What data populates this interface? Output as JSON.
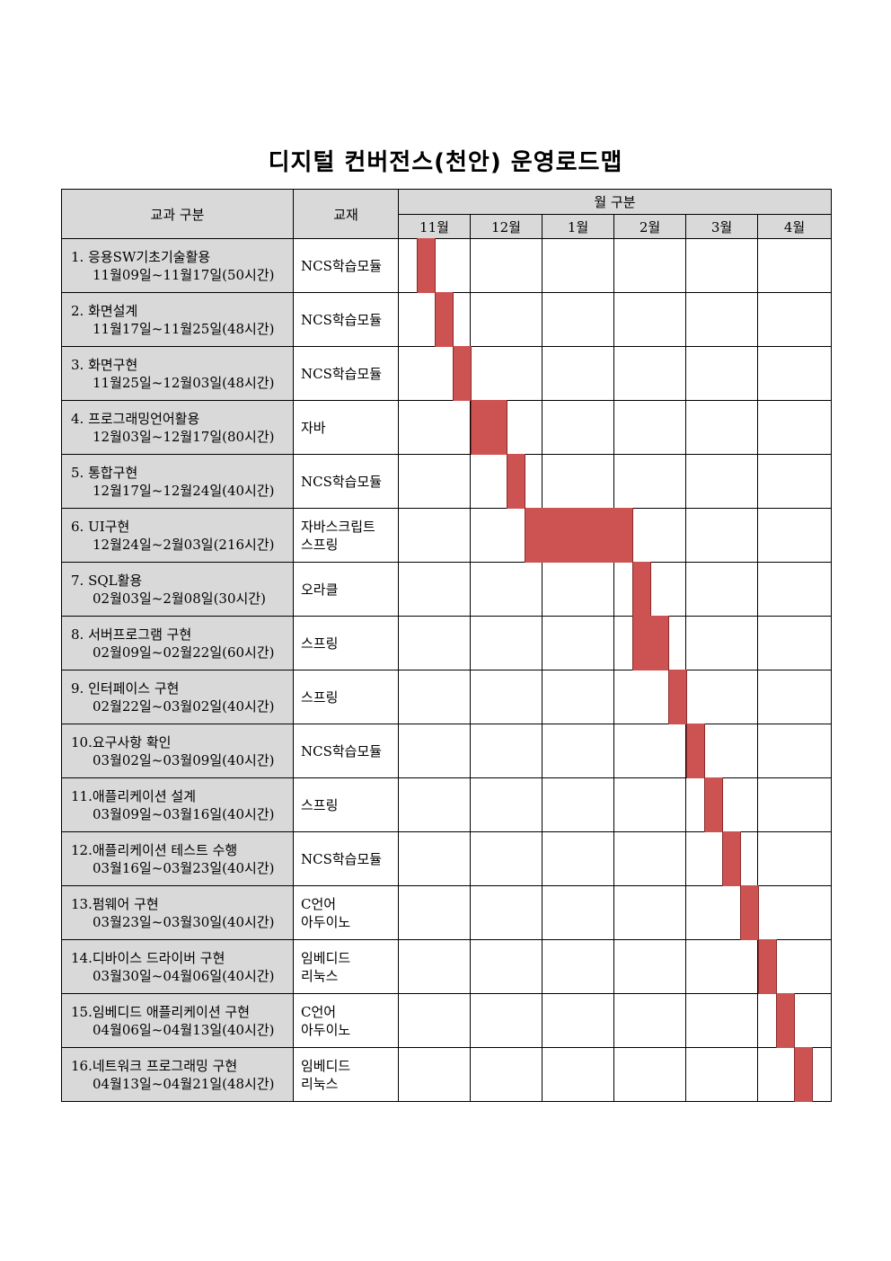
{
  "title": "디지털 컨버전스(천안) 운영로드맵",
  "header": {
    "subject_label": "교과 구분",
    "book_label": "교재",
    "month_group_label": "월 구분",
    "months": [
      "11월",
      "12월",
      "1월",
      "2월",
      "3월",
      "4월"
    ]
  },
  "bar_color": "#cd5353",
  "rows": [
    {
      "title": "1. 응용SW기초기술활용",
      "period": "11월09일~11월17일(50시간)",
      "book": [
        "NCS학습모듈"
      ],
      "bar": {
        "start_month": 0.25,
        "end_month": 0.5
      }
    },
    {
      "title": "2. 화면설계",
      "period": "11월17일~11월25일(48시간)",
      "book": [
        "NCS학습모듈"
      ],
      "bar": {
        "start_month": 0.5,
        "end_month": 0.75
      }
    },
    {
      "title": "3. 화면구현",
      "period": "11월25일~12월03일(48시간)",
      "book": [
        "NCS학습모듈"
      ],
      "bar": {
        "start_month": 0.75,
        "end_month": 1.0
      }
    },
    {
      "title": "4. 프로그래밍언어활용",
      "period": "12월03일~12월17일(80시간)",
      "book": [
        "자바"
      ],
      "bar": {
        "start_month": 1.0,
        "end_month": 1.5
      }
    },
    {
      "title": "5. 통합구현",
      "period": "12월17일~12월24일(40시간)",
      "book": [
        "NCS학습모듈"
      ],
      "bar": {
        "start_month": 1.5,
        "end_month": 1.75
      }
    },
    {
      "title": "6. UI구현",
      "period": "12월24일~2월03일(216시간)",
      "book": [
        "자바스크립트",
        "스프링"
      ],
      "bar": {
        "start_month": 1.75,
        "end_month": 3.25
      }
    },
    {
      "title": "7. SQL활용",
      "period": "02월03일~2월08일(30시간)",
      "book": [
        "오라클"
      ],
      "bar": {
        "start_month": 3.25,
        "end_month": 3.5
      }
    },
    {
      "title": "8. 서버프로그램 구현",
      "period": "02월09일~02월22일(60시간)",
      "book": [
        "스프링"
      ],
      "bar": {
        "start_month": 3.25,
        "end_month": 3.75
      }
    },
    {
      "title": "9. 인터페이스 구현",
      "period": "02월22일~03월02일(40시간)",
      "book": [
        "스프링"
      ],
      "bar": {
        "start_month": 3.75,
        "end_month": 4.0
      }
    },
    {
      "title": "10.요구사항 확인",
      "period": "03월02일~03월09일(40시간)",
      "book": [
        "NCS학습모듈"
      ],
      "bar": {
        "start_month": 4.0,
        "end_month": 4.25
      }
    },
    {
      "title": "11.애플리케이션 설계",
      "period": "03월09일~03월16일(40시간)",
      "book": [
        "스프링"
      ],
      "bar": {
        "start_month": 4.25,
        "end_month": 4.5
      }
    },
    {
      "title": "12.애플리케이션 테스트 수행",
      "period": "03월16일~03월23일(40시간)",
      "book": [
        "NCS학습모듈"
      ],
      "bar": {
        "start_month": 4.5,
        "end_month": 4.75
      }
    },
    {
      "title": "13.펌웨어 구현",
      "period": "03월23일~03월30일(40시간)",
      "book": [
        "C언어",
        "아두이노"
      ],
      "bar": {
        "start_month": 4.75,
        "end_month": 5.0
      }
    },
    {
      "title": "14.디바이스 드라이버 구현",
      "period": "03월30일~04월06일(40시간)",
      "book": [
        "임베디드",
        "리눅스"
      ],
      "bar": {
        "start_month": 5.0,
        "end_month": 5.25
      }
    },
    {
      "title": "15.임베디드 애플리케이션 구현",
      "period": "04월06일~04월13일(40시간)",
      "book": [
        "C언어",
        "아두이노"
      ],
      "bar": {
        "start_month": 5.25,
        "end_month": 5.5
      }
    },
    {
      "title": "16.네트워크 프로그래밍 구현",
      "period": "04월13일~04월21일(48시간)",
      "book": [
        "임베디드",
        "리눅스"
      ],
      "bar": {
        "start_month": 5.5,
        "end_month": 5.75
      }
    }
  ]
}
